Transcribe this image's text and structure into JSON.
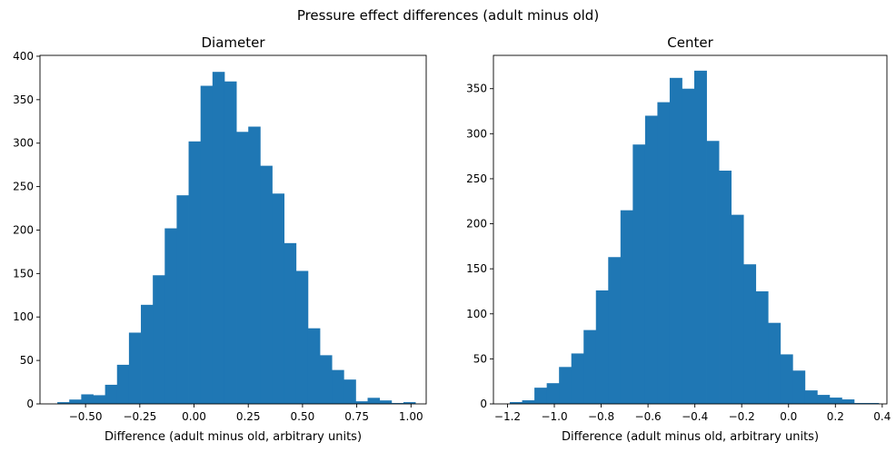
{
  "figure": {
    "title": "Pressure effect differences (adult minus old)"
  },
  "chart_data": [
    {
      "type": "bar",
      "subtype": "histogram",
      "title": "Diameter",
      "xlabel": "Difference (adult minus old, arbitrary units)",
      "ylabel": "",
      "color": "#1f77b4",
      "xlim": [
        -0.71,
        1.07
      ],
      "ylim": [
        0,
        401
      ],
      "xticks": [
        -0.5,
        -0.25,
        0.0,
        0.25,
        0.5,
        0.75,
        1.0
      ],
      "xtick_labels": [
        "−0.50",
        "−0.25",
        "0.00",
        "0.25",
        "0.50",
        "0.75",
        "1.00"
      ],
      "yticks": [
        0,
        50,
        100,
        150,
        200,
        250,
        300,
        350,
        400
      ],
      "ytick_labels": [
        "0",
        "50",
        "100",
        "150",
        "200",
        "250",
        "300",
        "350",
        "400"
      ],
      "bin_start": -0.63,
      "bin_width": 0.055,
      "values": [
        2,
        5,
        11,
        10,
        22,
        45,
        82,
        114,
        148,
        202,
        240,
        302,
        366,
        382,
        371,
        313,
        319,
        274,
        242,
        185,
        153,
        87,
        56,
        39,
        28,
        3,
        7,
        4,
        1,
        2
      ]
    },
    {
      "type": "bar",
      "subtype": "histogram",
      "title": "Center",
      "xlabel": "Difference (adult minus old, arbitrary units)",
      "ylabel": "",
      "color": "#1f77b4",
      "xlim": [
        -1.26,
        0.42
      ],
      "ylim": [
        0,
        387
      ],
      "xticks": [
        -1.2,
        -1.0,
        -0.8,
        -0.6,
        -0.4,
        -0.2,
        0.0,
        0.2,
        0.4
      ],
      "xtick_labels": [
        "−1.2",
        "−1.0",
        "−0.8",
        "−0.6",
        "−0.4",
        "−0.2",
        "0.0",
        "0.2",
        "0.4"
      ],
      "yticks": [
        0,
        50,
        100,
        150,
        200,
        250,
        300,
        350
      ],
      "ytick_labels": [
        "0",
        "50",
        "100",
        "150",
        "200",
        "250",
        "300",
        "350"
      ],
      "bin_start": -1.19,
      "bin_width": 0.0525,
      "values": [
        2,
        4,
        18,
        23,
        41,
        56,
        82,
        126,
        163,
        215,
        288,
        320,
        335,
        362,
        350,
        370,
        292,
        259,
        210,
        155,
        125,
        90,
        55,
        37,
        15,
        10,
        7,
        5,
        1,
        1
      ]
    }
  ]
}
